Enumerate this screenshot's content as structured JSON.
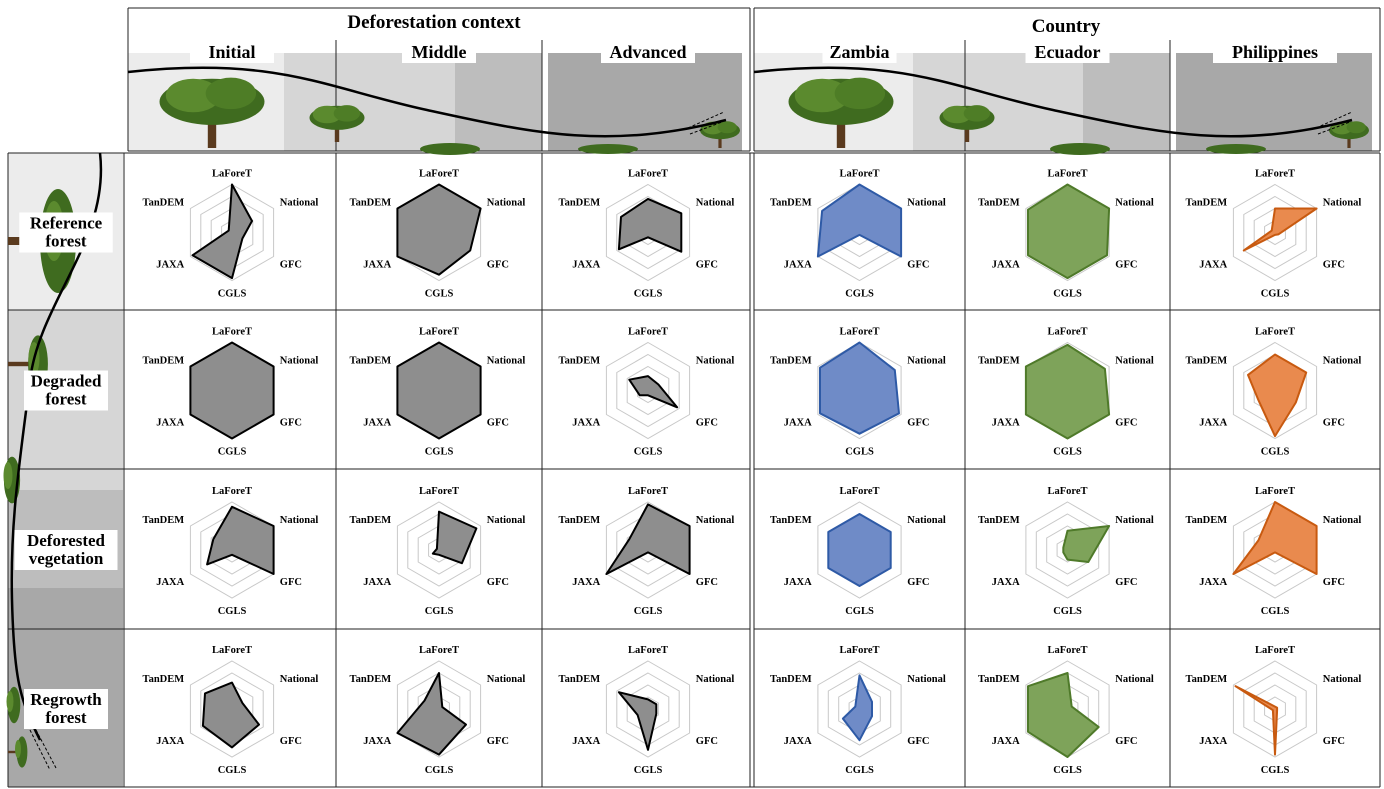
{
  "header": {
    "context_title": "Deforestation context",
    "country_title": "Country",
    "columns": [
      "Initial",
      "Middle",
      "Advanced",
      "Zambia",
      "Ecuador",
      "Philippines"
    ]
  },
  "rows": [
    {
      "line1": "Reference",
      "line2": "forest"
    },
    {
      "line1": "Degraded",
      "line2": "forest"
    },
    {
      "line1": "Deforested",
      "line2": "vegetation"
    },
    {
      "line1": "Regrowth",
      "line2": "forest"
    }
  ],
  "colors": {
    "Initial": "#000000",
    "Middle": "#000000",
    "Advanced": "#000000",
    "Zambia": "#2e5aa6",
    "Ecuador": "#4f7a2a",
    "Philippines": "#c85a10",
    "fill_Initial": "#8e8e8e",
    "fill_Middle": "#8e8e8e",
    "fill_Advanced": "#8e8e8e",
    "fill_Zambia": "#6f8bc7",
    "fill_Ecuador": "#7ea35a",
    "fill_Philippines": "#e98a4e"
  },
  "icons": [
    "tree-icon",
    "curve-line",
    "arrow-icon"
  ],
  "chart_data": {
    "type": "radar",
    "axes": [
      "LaForeT",
      "National",
      "GFC",
      "CGLS",
      "JAXA",
      "TanDEM"
    ],
    "rings": 4,
    "grid": true,
    "scale_max": 1,
    "panels": [
      {
        "row": "Reference forest",
        "column": "Initial",
        "values": [
          1.0,
          0.48,
          0.25,
          0.95,
          0.95,
          0.08
        ]
      },
      {
        "row": "Reference forest",
        "column": "Middle",
        "values": [
          1.0,
          1.0,
          0.75,
          0.88,
          1.0,
          1.0
        ]
      },
      {
        "row": "Reference forest",
        "column": "Advanced",
        "values": [
          0.7,
          0.8,
          0.8,
          0.1,
          0.7,
          0.65
        ]
      },
      {
        "row": "Reference forest",
        "column": "Zambia",
        "values": [
          1.0,
          1.0,
          1.0,
          0.05,
          1.0,
          0.9
        ]
      },
      {
        "row": "Reference forest",
        "column": "Ecuador",
        "values": [
          1.0,
          1.0,
          0.95,
          0.95,
          0.95,
          0.95
        ]
      },
      {
        "row": "Reference forest",
        "column": "Philippines",
        "values": [
          0.5,
          1.0,
          0.08,
          0.05,
          0.75,
          0.08
        ]
      },
      {
        "row": "Degraded forest",
        "column": "Initial",
        "values": [
          1.0,
          1.0,
          1.0,
          1.0,
          1.0,
          1.0
        ]
      },
      {
        "row": "Degraded forest",
        "column": "Middle",
        "values": [
          1.0,
          1.0,
          1.0,
          1.0,
          1.0,
          1.0
        ]
      },
      {
        "row": "Degraded forest",
        "column": "Advanced",
        "values": [
          0.3,
          0.25,
          0.7,
          0.1,
          0.2,
          0.45
        ]
      },
      {
        "row": "Degraded forest",
        "column": "Zambia",
        "values": [
          1.0,
          0.85,
          0.95,
          0.9,
          0.95,
          0.95
        ]
      },
      {
        "row": "Degraded forest",
        "column": "Ecuador",
        "values": [
          0.95,
          0.9,
          1.0,
          1.0,
          1.0,
          1.0
        ]
      },
      {
        "row": "Degraded forest",
        "column": "Philippines",
        "values": [
          0.75,
          0.75,
          0.5,
          0.95,
          0.4,
          0.65
        ]
      },
      {
        "row": "Deforested vegetation",
        "column": "Initial",
        "values": [
          0.9,
          1.0,
          1.0,
          0.1,
          0.6,
          0.45
        ]
      },
      {
        "row": "Deforested vegetation",
        "column": "Middle",
        "values": [
          0.8,
          0.9,
          0.55,
          0.1,
          0.15,
          0.05
        ]
      },
      {
        "row": "Deforested vegetation",
        "column": "Advanced",
        "values": [
          0.95,
          1.0,
          1.0,
          0.05,
          1.0,
          0.45
        ]
      },
      {
        "row": "Deforested vegetation",
        "column": "Zambia",
        "values": [
          0.75,
          0.75,
          0.75,
          0.75,
          0.75,
          0.75
        ]
      },
      {
        "row": "Deforested vegetation",
        "column": "Ecuador",
        "values": [
          0.4,
          1.0,
          0.5,
          0.2,
          0.1,
          0.1
        ]
      },
      {
        "row": "Deforested vegetation",
        "column": "Philippines",
        "values": [
          1.0,
          1.0,
          1.0,
          0.05,
          1.0,
          0.4
        ]
      },
      {
        "row": "Regrowth forest",
        "column": "Initial",
        "values": [
          0.55,
          0.25,
          0.65,
          0.8,
          0.7,
          0.65
        ]
      },
      {
        "row": "Regrowth forest",
        "column": "Middle",
        "values": [
          0.75,
          0.08,
          0.65,
          0.95,
          1.0,
          0.35
        ]
      },
      {
        "row": "Regrowth forest",
        "column": "Advanced",
        "values": [
          0.2,
          0.2,
          0.2,
          0.85,
          0.25,
          0.7
        ]
      },
      {
        "row": "Regrowth forest",
        "column": "Zambia",
        "values": [
          0.7,
          0.3,
          0.3,
          0.65,
          0.4,
          0.1
        ]
      },
      {
        "row": "Regrowth forest",
        "column": "Ecuador",
        "values": [
          0.75,
          0.1,
          0.75,
          1.0,
          0.95,
          0.95
        ]
      },
      {
        "row": "Regrowth forest",
        "column": "Philippines",
        "values": [
          0.05,
          0.05,
          0.05,
          0.95,
          0.05,
          0.95
        ]
      }
    ]
  }
}
